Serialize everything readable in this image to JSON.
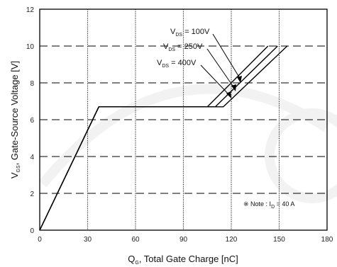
{
  "chart_data": {
    "type": "line",
    "xlabel": {
      "main": "Q",
      "sub": "G",
      "rest": ", Total Gate Charge [nC]"
    },
    "ylabel": {
      "main": "V",
      "sub": "GS",
      "rest": ", Gate-Source Voltage [V]"
    },
    "xlim": [
      0,
      180
    ],
    "ylim": [
      0,
      12
    ],
    "xticks": [
      0,
      30,
      60,
      90,
      120,
      150,
      180
    ],
    "yticks": [
      0,
      2,
      4,
      6,
      8,
      10,
      12
    ],
    "grid": true,
    "series": [
      {
        "name": {
          "main": "V",
          "sub": "DS",
          "rest": " = 100V"
        },
        "x": [
          0,
          37,
          105,
          143
        ],
        "y": [
          0,
          6.7,
          6.7,
          10
        ]
      },
      {
        "name": {
          "main": "V",
          "sub": "DS",
          "rest": " = 250V"
        },
        "x": [
          0,
          37,
          110,
          149
        ],
        "y": [
          0,
          6.7,
          6.7,
          10
        ]
      },
      {
        "name": {
          "main": "V",
          "sub": "DS",
          "rest": " = 400V"
        },
        "x": [
          0,
          37,
          115,
          155
        ],
        "y": [
          0,
          6.7,
          6.7,
          10
        ]
      }
    ],
    "note": {
      "prefix": "※ Note : I",
      "sub": "D",
      "rest": " = 40 A"
    },
    "colors": {
      "line": "#000000",
      "grid": "#000000",
      "background": "#ffffff",
      "watermark": "#f2f2f2"
    }
  }
}
